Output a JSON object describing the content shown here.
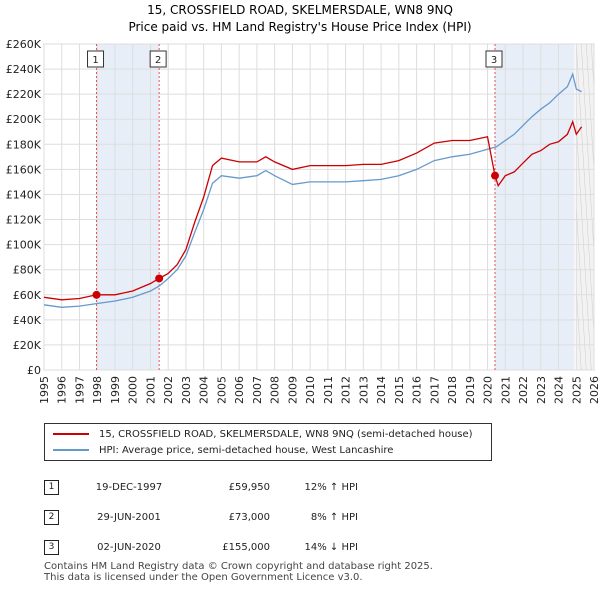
{
  "chart_data": {
    "type": "line",
    "title": "15, CROSSFIELD ROAD, SKELMERSDALE, WN8 9NQ",
    "subtitle": "Price paid vs. HM Land Registry's House Price Index (HPI)",
    "y_ticks": [
      "£0",
      "£20K",
      "£40K",
      "£60K",
      "£80K",
      "£100K",
      "£120K",
      "£140K",
      "£160K",
      "£180K",
      "£200K",
      "£220K",
      "£240K",
      "£260K"
    ],
    "x_ticks": [
      "1995",
      "1996",
      "1997",
      "1998",
      "1999",
      "2000",
      "2001",
      "2002",
      "2003",
      "2004",
      "2005",
      "2006",
      "2007",
      "2008",
      "2009",
      "2010",
      "2011",
      "2012",
      "2013",
      "2014",
      "2015",
      "2016",
      "2017",
      "2018",
      "2019",
      "2020",
      "2021",
      "2022",
      "2023",
      "2024",
      "2025",
      "2026"
    ],
    "xlim": [
      1995,
      2026
    ],
    "ylim": [
      0,
      260000
    ],
    "series": [
      {
        "name": "15, CROSSFIELD ROAD, SKELMERSDALE, WN8 9NQ (semi-detached house)",
        "color": "#cc0000",
        "x": [
          1995.0,
          1996.0,
          1997.0,
          1997.96,
          1999.0,
          2000.0,
          2001.0,
          2001.49,
          2002.0,
          2002.5,
          2003.0,
          2003.5,
          2004.0,
          2004.5,
          2005.0,
          2006.0,
          2007.0,
          2007.5,
          2008.0,
          2009.0,
          2010.0,
          2011.0,
          2012.0,
          2013.0,
          2014.0,
          2015.0,
          2016.0,
          2017.0,
          2018.0,
          2019.0,
          2020.0,
          2020.42,
          2020.6,
          2021.0,
          2021.5,
          2022.0,
          2022.5,
          2023.0,
          2023.5,
          2024.0,
          2024.5,
          2024.8,
          2025.0,
          2025.3
        ],
        "y": [
          58000,
          56000,
          57000,
          59950,
          60000,
          63000,
          69000,
          73000,
          77000,
          84000,
          96000,
          118000,
          138000,
          163000,
          169000,
          166000,
          166000,
          170000,
          166000,
          160000,
          163000,
          163000,
          163000,
          164000,
          164000,
          167000,
          173000,
          181000,
          183000,
          183000,
          186000,
          155000,
          147000,
          155000,
          158000,
          165000,
          172000,
          175000,
          180000,
          182000,
          188000,
          198000,
          188000,
          194000
        ]
      },
      {
        "name": "HPI: Average price, semi-detached house, West Lancashire",
        "color": "#6699cc",
        "x": [
          1995.0,
          1996.0,
          1997.0,
          1998.0,
          1999.0,
          2000.0,
          2001.0,
          2001.5,
          2002.0,
          2002.5,
          2003.0,
          2003.5,
          2004.0,
          2004.5,
          2005.0,
          2006.0,
          2007.0,
          2007.5,
          2008.0,
          2009.0,
          2010.0,
          2011.0,
          2012.0,
          2013.0,
          2014.0,
          2015.0,
          2016.0,
          2017.0,
          2018.0,
          2019.0,
          2020.0,
          2020.5,
          2021.0,
          2021.5,
          2022.0,
          2022.5,
          2023.0,
          2023.5,
          2024.0,
          2024.5,
          2024.8,
          2025.0,
          2025.3
        ],
        "y": [
          52000,
          50000,
          51000,
          53000,
          55000,
          58000,
          63000,
          67000,
          73000,
          80000,
          91000,
          110000,
          128000,
          149000,
          155000,
          153000,
          155000,
          159000,
          155000,
          148000,
          150000,
          150000,
          150000,
          151000,
          152000,
          155000,
          160000,
          167000,
          170000,
          172000,
          176000,
          178000,
          183000,
          188000,
          195000,
          202000,
          208000,
          213000,
          220000,
          226000,
          236000,
          224000,
          222000
        ]
      }
    ],
    "sales": [
      {
        "label": "1",
        "x": 1997.96,
        "y": 59950
      },
      {
        "label": "2",
        "x": 2001.49,
        "y": 73000
      },
      {
        "label": "3",
        "x": 2020.42,
        "y": 155000
      }
    ],
    "highlight_bands": [
      [
        1997.96,
        2001.49
      ],
      [
        2020.42,
        2024.9
      ]
    ]
  },
  "legend": {
    "property_label": "15, CROSSFIELD ROAD, SKELMERSDALE, WN8 9NQ (semi-detached house)",
    "hpi_label": "HPI: Average price, semi-detached house, West Lancashire"
  },
  "transactions": [
    {
      "num": "1",
      "date": "19-DEC-1997",
      "price": "£59,950",
      "hpi": "12% ↑ HPI"
    },
    {
      "num": "2",
      "date": "29-JUN-2001",
      "price": "£73,000",
      "hpi": "8% ↑ HPI"
    },
    {
      "num": "3",
      "date": "02-JUN-2020",
      "price": "£155,000",
      "hpi": "14% ↓ HPI"
    }
  ],
  "footer": {
    "line1": "Contains HM Land Registry data © Crown copyright and database right 2025.",
    "line2": "This data is licensed under the Open Government Licence v3.0."
  }
}
